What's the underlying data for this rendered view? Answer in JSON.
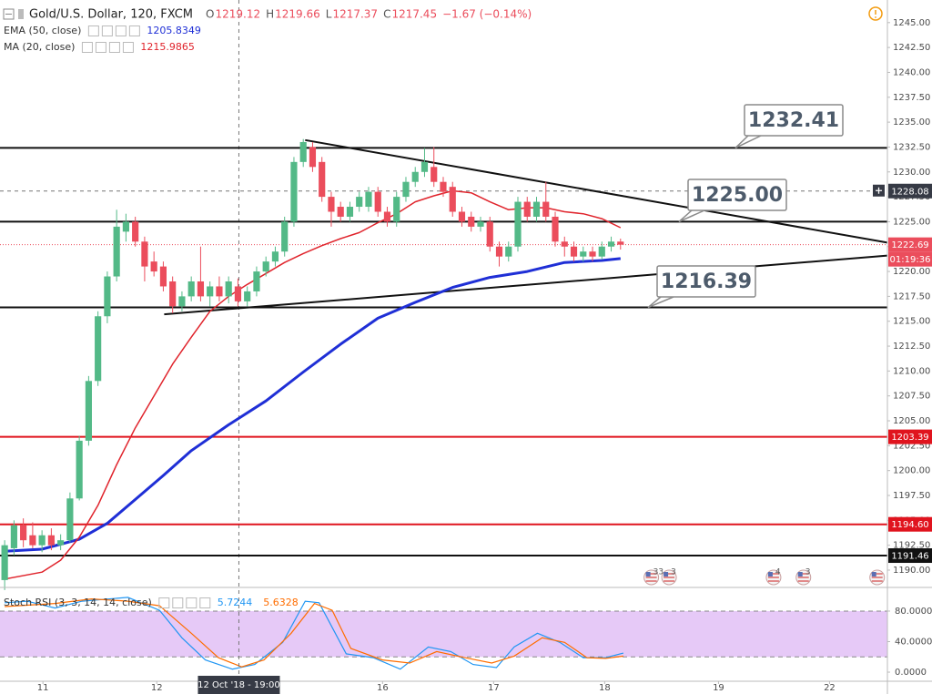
{
  "chart_data": [
    {
      "type": "candlestick",
      "title": "Gold/U.S. Dollar, 120, FXCM",
      "quote": [
        {
          "key": "O",
          "value": 1219.12
        },
        {
          "key": "H",
          "value": 1219.66
        },
        {
          "key": "L",
          "value": 1217.37
        },
        {
          "key": "C",
          "value": 1217.45
        }
      ],
      "change": "−1.67 (−0.14%)",
      "categories": [
        null,
        null,
        null,
        null,
        null,
        null,
        null,
        null,
        null,
        null,
        null,
        null,
        null,
        null,
        null,
        null,
        null,
        null,
        null,
        null,
        null,
        null,
        null,
        null,
        null,
        null,
        null,
        null,
        null,
        null,
        null,
        null,
        null,
        null,
        null,
        null,
        null,
        null,
        null,
        null,
        null,
        null,
        null,
        null,
        null,
        null,
        null,
        null,
        null,
        null,
        null,
        null,
        null,
        null,
        null,
        null,
        null,
        null,
        null,
        null,
        null,
        null,
        null,
        null,
        null,
        null,
        null
      ],
      "open": [
        1189,
        1192.2,
        1194.5,
        1193.5,
        1192.5,
        1193.5,
        1192.5,
        1193,
        1197.2,
        1203,
        1209,
        1215.5,
        1219.5,
        1224,
        1225,
        1223,
        1221,
        1220.5,
        1219,
        1216.5,
        1217.5,
        1219,
        1217.5,
        1218.5,
        1217.5,
        1218.5,
        1217,
        1218,
        1220,
        1221,
        1222,
        1225,
        1231,
        1232.5,
        1231,
        1227.5,
        1226.5,
        1225.5,
        1226.5,
        1226.5,
        1228,
        1226,
        1225,
        1227.5,
        1229,
        1230,
        1230.5,
        1229,
        1228.5,
        1226,
        1225.5,
        1224.5,
        1225,
        1222.5,
        1221.5,
        1222.5,
        1227,
        1225.5,
        1227,
        1225.5,
        1223,
        1222.5,
        1221.5,
        1222,
        1221.5,
        1222.5,
        1223
      ],
      "high": [
        1193,
        1195,
        1195.2,
        1194.8,
        1194,
        1194.2,
        1193.6,
        1197.8,
        1203.5,
        1209.5,
        1216,
        1220,
        1226.2,
        1225.8,
        1225.5,
        1223.5,
        1222,
        1221,
        1219.5,
        1218,
        1219.5,
        1222.5,
        1219,
        1219.5,
        1219.5,
        1219.3,
        1218.5,
        1220.5,
        1221.5,
        1222.5,
        1225.5,
        1231.5,
        1233.3,
        1233,
        1231.5,
        1228,
        1227,
        1227,
        1228,
        1228.5,
        1228.5,
        1226.5,
        1228,
        1229.5,
        1230.5,
        1232.4,
        1232.5,
        1229.5,
        1229,
        1226.5,
        1226,
        1225.5,
        1225.5,
        1223,
        1223,
        1227.5,
        1227.5,
        1227.5,
        1229,
        1226,
        1223.5,
        1223,
        1222.5,
        1222.5,
        1223,
        1223.5,
        1223.3
      ],
      "low": [
        1188,
        1191.5,
        1192.3,
        1192.2,
        1191.8,
        1192,
        1192,
        1192.8,
        1197,
        1202.5,
        1208.5,
        1214.8,
        1219,
        1223,
        1222.5,
        1219,
        1219.5,
        1218,
        1215.8,
        1216,
        1217,
        1217,
        1216.5,
        1217,
        1216.8,
        1216.5,
        1216.5,
        1217.5,
        1219.5,
        1220.5,
        1221.5,
        1224.5,
        1230.5,
        1230,
        1227,
        1224.5,
        1225,
        1225,
        1226,
        1226,
        1225.5,
        1224.5,
        1224.5,
        1227,
        1228.5,
        1229.5,
        1228.5,
        1227.5,
        1225.5,
        1224.5,
        1224,
        1224,
        1222,
        1220.5,
        1221,
        1222,
        1225,
        1225,
        1225,
        1222.5,
        1221.5,
        1221,
        1221,
        1221,
        1221.2,
        1222,
        1222.2
      ],
      "close": [
        1192.5,
        1194.5,
        1193,
        1192.5,
        1193.5,
        1192.5,
        1193,
        1197.2,
        1203,
        1209,
        1215.5,
        1219.5,
        1224.5,
        1225,
        1223,
        1220.5,
        1220,
        1218.5,
        1216.5,
        1217.5,
        1219,
        1217.5,
        1218.5,
        1217.5,
        1219,
        1217,
        1218,
        1220,
        1221,
        1222,
        1225,
        1231,
        1233,
        1230.5,
        1227.5,
        1226,
        1225.5,
        1226.5,
        1227.5,
        1228,
        1226,
        1225,
        1227.5,
        1229,
        1230,
        1231,
        1229,
        1228,
        1226,
        1225,
        1224.5,
        1225,
        1222.5,
        1221.5,
        1222.5,
        1227,
        1225.5,
        1227,
        1225.5,
        1223,
        1222.5,
        1221.5,
        1222,
        1221.5,
        1222.5,
        1223,
        1222.69
      ],
      "up_color": "#53b987",
      "down_color": "#eb4d5c",
      "indicators": [
        {
          "name": "EMA (50, close)",
          "color": "#1f2fd6",
          "line_width": 3,
          "last_value": 1205.8349,
          "x": [
            0,
            4,
            8,
            11,
            14,
            17,
            20,
            24,
            28,
            32,
            36,
            40,
            44,
            48,
            52,
            56,
            60,
            64,
            66
          ],
          "values": [
            1191.9,
            1192.1,
            1193.1,
            1194.7,
            1197.1,
            1199.5,
            1202.0,
            1204.6,
            1207.0,
            1209.9,
            1212.7,
            1215.3,
            1216.9,
            1218.4,
            1219.4,
            1220.0,
            1220.9,
            1221.1,
            1221.3
          ]
        },
        {
          "name": "MA (20, close)",
          "color": "#e0242c",
          "line_width": 1.5,
          "last_value": 1215.9865,
          "x": [
            0,
            4,
            6,
            8,
            10,
            12,
            14,
            16,
            18,
            20,
            22,
            24,
            26,
            28,
            30,
            32,
            34,
            36,
            38,
            40,
            42,
            44,
            46,
            48,
            50,
            52,
            54,
            56,
            58,
            60,
            62,
            64,
            66
          ],
          "values": [
            1189.1,
            1189.8,
            1191.0,
            1193.3,
            1196.5,
            1200.6,
            1204.3,
            1207.5,
            1210.7,
            1213.4,
            1216.0,
            1217.5,
            1218.7,
            1219.8,
            1220.9,
            1221.8,
            1222.6,
            1223.3,
            1223.9,
            1224.9,
            1225.8,
            1227.0,
            1227.6,
            1228.1,
            1227.9,
            1227.0,
            1226.2,
            1226.4,
            1226.4,
            1226.0,
            1225.8,
            1225.3,
            1224.4
          ]
        }
      ],
      "xlim": [
        -0.5,
        94.6
      ],
      "xticks": [
        {
          "value": 4.1,
          "label": "11"
        },
        {
          "value": 16.3,
          "label": "12"
        },
        {
          "value": 40.5,
          "label": "16"
        },
        {
          "value": 52.4,
          "label": "17"
        },
        {
          "value": 64.3,
          "label": "18"
        },
        {
          "value": 76.5,
          "label": "19"
        },
        {
          "value": 88.4,
          "label": "22"
        }
      ],
      "ylim": [
        1188.26,
        1247.27
      ],
      "yticks": [
        {
          "value": 1190,
          "label": "1190.00"
        },
        {
          "value": 1192.5,
          "label": "1192.50"
        },
        {
          "value": 1195,
          "label": "1195.00"
        },
        {
          "value": 1197.5,
          "label": "1197.50"
        },
        {
          "value": 1200,
          "label": "1200.00"
        },
        {
          "value": 1202.5,
          "label": "1202.50"
        },
        {
          "value": 1205,
          "label": "1205.00"
        },
        {
          "value": 1207.5,
          "label": "1207.50"
        },
        {
          "value": 1210,
          "label": "1210.00"
        },
        {
          "value": 1212.5,
          "label": "1212.50"
        },
        {
          "value": 1215,
          "label": "1215.00"
        },
        {
          "value": 1217.5,
          "label": "1217.50"
        },
        {
          "value": 1220,
          "label": "1220.00"
        },
        {
          "value": 1222.5,
          "label": "1222.50"
        },
        {
          "value": 1225,
          "label": "1225.00"
        },
        {
          "value": 1227.5,
          "label": "1227.50"
        },
        {
          "value": 1230,
          "label": "1230.00"
        },
        {
          "value": 1232.5,
          "label": "1232.50"
        },
        {
          "value": 1235,
          "label": "1235.00"
        },
        {
          "value": 1237.5,
          "label": "1237.50"
        },
        {
          "value": 1240,
          "label": "1240.00"
        },
        {
          "value": 1242.5,
          "label": "1242.50"
        },
        {
          "value": 1245,
          "label": "1245.00"
        }
      ],
      "grid": false,
      "levels": [
        {
          "value": 1232.41,
          "color": "#111111"
        },
        {
          "value": 1225,
          "color": "#111111"
        },
        {
          "value": 1216.39,
          "color": "#111111"
        },
        {
          "value": 1203.39,
          "color": "#e0141e",
          "axis_label": "1203.39"
        },
        {
          "value": 1194.6,
          "color": "#e0141e",
          "axis_label": "1194.60"
        },
        {
          "value": 1191.46,
          "color": "#111111",
          "axis_label": "1191.46"
        }
      ],
      "trendlines": [
        {
          "color": "#111111",
          "x": [
            32.2,
            94.6
          ],
          "values": [
            1233.2,
            1222.9
          ]
        },
        {
          "color": "#111111",
          "x": [
            17.1,
            94.6
          ],
          "values": [
            1215.7,
            1221.6
          ]
        }
      ],
      "callouts": [
        1232.41,
        {
          "value": 1225,
          "label": "1225.00"
        },
        1216.39
      ],
      "crosshair": {
        "x": 25.1,
        "x_label": "12 Oct '18 - 19:00",
        "y": 1228.08
      },
      "countdown": "01:19:36",
      "events": [
        {
          "x": 69.3,
          "label": "33"
        },
        {
          "x": 71.2,
          "label": "3"
        },
        {
          "x": 82.4,
          "label": "4"
        },
        {
          "x": 85.6,
          "label": "3"
        },
        {
          "x": 93.5
        }
      ]
    },
    {
      "type": "line",
      "title": "Stoch RSI (3, 3, 14, 14, close)",
      "series": [
        {
          "color": "#2196f3",
          "last_value": 5.7244,
          "x": [
            0,
            2.4,
            5.4,
            8.3,
            13.2,
            16.6,
            19,
            21.5,
            24.4,
            26.8,
            29.8,
            32.2,
            33.7,
            36.6,
            39.5,
            42.4,
            45.4,
            47.8,
            50.2,
            52.7,
            54.6,
            57.1,
            59.5,
            62,
            64.4,
            66.3
          ],
          "values": [
            91,
            93,
            84,
            93,
            98,
            81,
            45,
            16,
            4,
            10,
            39,
            93,
            91,
            24,
            19,
            4,
            33,
            27,
            10,
            6,
            33,
            51,
            39,
            19,
            19,
            25
          ]
        },
        {
          "color": "#ff6d00",
          "last_value": 5.6328,
          "x": [
            0,
            5.4,
            9.3,
            13.2,
            16.6,
            20,
            22.9,
            25.4,
            27.8,
            30.7,
            33.2,
            35.1,
            37.1,
            40.5,
            43.4,
            46.3,
            49.3,
            52.2,
            54.6,
            57.6,
            60,
            62.4,
            64.4,
            66.3
          ],
          "values": [
            86,
            90,
            96,
            93,
            87,
            51,
            19,
            7,
            16,
            51,
            90,
            81,
            31,
            16,
            12,
            27,
            19,
            12,
            21,
            45,
            39,
            19,
            18,
            21
          ]
        }
      ],
      "xlim": [
        -0.5,
        94.6
      ],
      "ylim": [
        -11.9,
        111
      ],
      "yticks": [
        {
          "value": 0,
          "label": "0.0000"
        },
        {
          "value": 40,
          "label": "40.0000"
        },
        {
          "value": 80,
          "label": "80.0000"
        }
      ],
      "bands": [
        20,
        80
      ],
      "band_color": "#e6c9f7"
    }
  ]
}
